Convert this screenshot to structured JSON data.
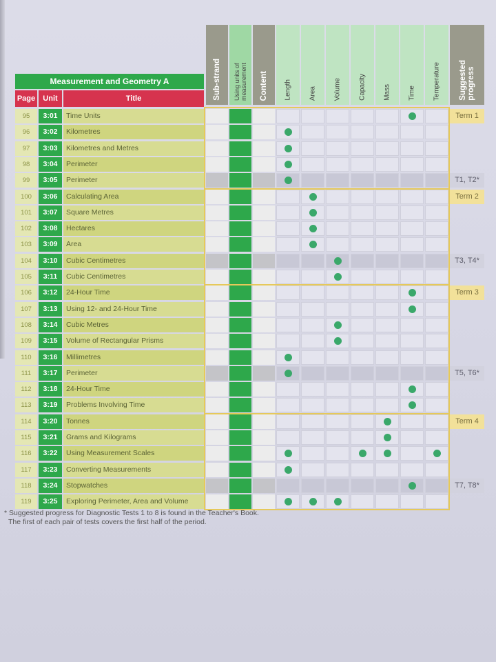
{
  "table_title": "Measurement and Geometry A",
  "col_page": "Page",
  "col_unit": "Unit",
  "col_title": "Title",
  "headers": {
    "substrand": "Sub-strand",
    "using_units_1": "Using units of",
    "using_units_2": "measurement",
    "content": "Content",
    "length": "Length",
    "area": "Area",
    "volume": "Volume",
    "capacity": "Capacity",
    "mass": "Mass",
    "time": "Time",
    "temperature": "Temperature",
    "suggested_1": "Suggested",
    "suggested_2": "progress"
  },
  "rows": [
    {
      "page": "95",
      "unit": "3:01",
      "title": "Time Units",
      "marks": [
        "time"
      ]
    },
    {
      "page": "96",
      "unit": "3:02",
      "title": "Kilometres",
      "marks": [
        "length"
      ]
    },
    {
      "page": "97",
      "unit": "3:03",
      "title": "Kilometres and Metres",
      "marks": [
        "length"
      ]
    },
    {
      "page": "98",
      "unit": "3:04",
      "title": "Perimeter",
      "marks": [
        "length"
      ]
    },
    {
      "page": "99",
      "unit": "3:05",
      "title": "Perimeter",
      "marks": [
        "length"
      ]
    },
    {
      "page": "100",
      "unit": "3:06",
      "title": "Calculating Area",
      "marks": [
        "area"
      ]
    },
    {
      "page": "101",
      "unit": "3:07",
      "title": "Square Metres",
      "marks": [
        "area"
      ]
    },
    {
      "page": "102",
      "unit": "3:08",
      "title": "Hectares",
      "marks": [
        "area"
      ]
    },
    {
      "page": "103",
      "unit": "3:09",
      "title": "Area",
      "marks": [
        "area"
      ]
    },
    {
      "page": "104",
      "unit": "3:10",
      "title": "Cubic Centimetres",
      "marks": [
        "volume"
      ]
    },
    {
      "page": "105",
      "unit": "3:11",
      "title": "Cubic Centimetres",
      "marks": [
        "volume"
      ]
    },
    {
      "page": "106",
      "unit": "3:12",
      "title": "24-Hour Time",
      "marks": [
        "time"
      ]
    },
    {
      "page": "107",
      "unit": "3:13",
      "title": "Using 12- and 24-Hour Time",
      "marks": [
        "time"
      ]
    },
    {
      "page": "108",
      "unit": "3:14",
      "title": "Cubic Metres",
      "marks": [
        "volume"
      ]
    },
    {
      "page": "109",
      "unit": "3:15",
      "title": "Volume of Rectangular Prisms",
      "marks": [
        "volume"
      ]
    },
    {
      "page": "110",
      "unit": "3:16",
      "title": "Millimetres",
      "marks": [
        "length"
      ]
    },
    {
      "page": "111",
      "unit": "3:17",
      "title": "Perimeter",
      "marks": [
        "length"
      ]
    },
    {
      "page": "112",
      "unit": "3:18",
      "title": "24-Hour Time",
      "marks": [
        "time"
      ]
    },
    {
      "page": "113",
      "unit": "3:19",
      "title": "Problems Involving Time",
      "marks": [
        "time"
      ]
    },
    {
      "page": "114",
      "unit": "3:20",
      "title": "Tonnes",
      "marks": [
        "mass"
      ]
    },
    {
      "page": "115",
      "unit": "3:21",
      "title": "Grams and Kilograms",
      "marks": [
        "mass"
      ]
    },
    {
      "page": "116",
      "unit": "3:22",
      "title": "Using Measurement Scales",
      "marks": [
        "length",
        "capacity",
        "mass",
        "temperature"
      ]
    },
    {
      "page": "117",
      "unit": "3:23",
      "title": "Converting Measurements",
      "marks": [
        "length"
      ]
    },
    {
      "page": "118",
      "unit": "3:24",
      "title": "Stopwatches",
      "marks": [
        "time"
      ]
    },
    {
      "page": "119",
      "unit": "3:25",
      "title": "Exploring Perimeter, Area and Volume",
      "marks": [
        "length",
        "area",
        "volume"
      ]
    }
  ],
  "progress": [
    {
      "label": "Term 1",
      "kind": "term",
      "row": 0
    },
    {
      "label": "T1, T2*",
      "kind": "test",
      "row": 4
    },
    {
      "label": "Term 2",
      "kind": "term",
      "row": 5
    },
    {
      "label": "T3, T4*",
      "kind": "test",
      "row": 9
    },
    {
      "label": "Term 3",
      "kind": "term",
      "row": 11
    },
    {
      "label": "T5, T6*",
      "kind": "test",
      "row": 16
    },
    {
      "label": "Term 4",
      "kind": "term",
      "row": 19
    },
    {
      "label": "T7, T8*",
      "kind": "test",
      "row": 23
    }
  ],
  "footnote_1": "* Suggested progress for Diagnostic Tests 1 to 8 is found in the Teacher's Book.",
  "footnote_2": "The first of each pair of tests covers the first half of the period.",
  "colors": {
    "green": "#2ea84b",
    "red": "#d6334e",
    "olive": "#cfd97f",
    "dot": "#3aa86a",
    "term_bg": "#f2e19a"
  }
}
